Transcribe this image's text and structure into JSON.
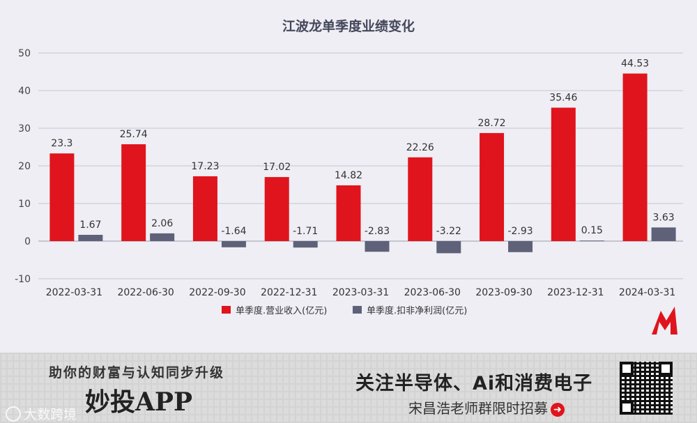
{
  "chart_data": {
    "type": "bar",
    "title": "江波龙单季度业绩变化",
    "categories": [
      "2022-03-31",
      "2022-06-30",
      "2022-09-30",
      "2022-12-31",
      "2023-03-31",
      "2023-06-30",
      "2023-09-30",
      "2023-12-31",
      "2024-03-31"
    ],
    "series": [
      {
        "name": "单季度.营业收入(亿元)",
        "color": "#e0141c",
        "values": [
          23.3,
          25.74,
          17.23,
          17.02,
          14.82,
          22.26,
          28.72,
          35.46,
          44.53
        ],
        "labels": [
          "23.3",
          "25.74",
          "17.23",
          "17.02",
          "14.82",
          "22.26",
          "28.72",
          "35.46",
          "44.53"
        ]
      },
      {
        "name": "单季度.扣非净利润(亿元)",
        "color": "#5e6178",
        "values": [
          1.67,
          2.06,
          -1.64,
          -1.71,
          -2.83,
          -3.22,
          -2.93,
          0.15,
          3.63
        ],
        "labels": [
          "1.67",
          "2.06",
          "-1.64",
          "-1.71",
          "-2.83",
          "-3.22",
          "-2.93",
          "0.15",
          "3.63"
        ]
      }
    ],
    "yticks": [
      50,
      40,
      30,
      20,
      10,
      0,
      -10
    ],
    "ylim": [
      -10,
      50
    ],
    "grid": true,
    "legend": "bottom"
  },
  "footer": {
    "slogan": "助你的财富与认知同步升级",
    "app_name": "妙投APP",
    "watermark": "大数跨境",
    "follow_text": "关注半导体、Ai和消费电子",
    "recruit_text": "宋昌浩老师群限时招募"
  },
  "colors": {
    "revenue": "#e0141c",
    "profit": "#5e6178",
    "logo": "#e0141c"
  }
}
